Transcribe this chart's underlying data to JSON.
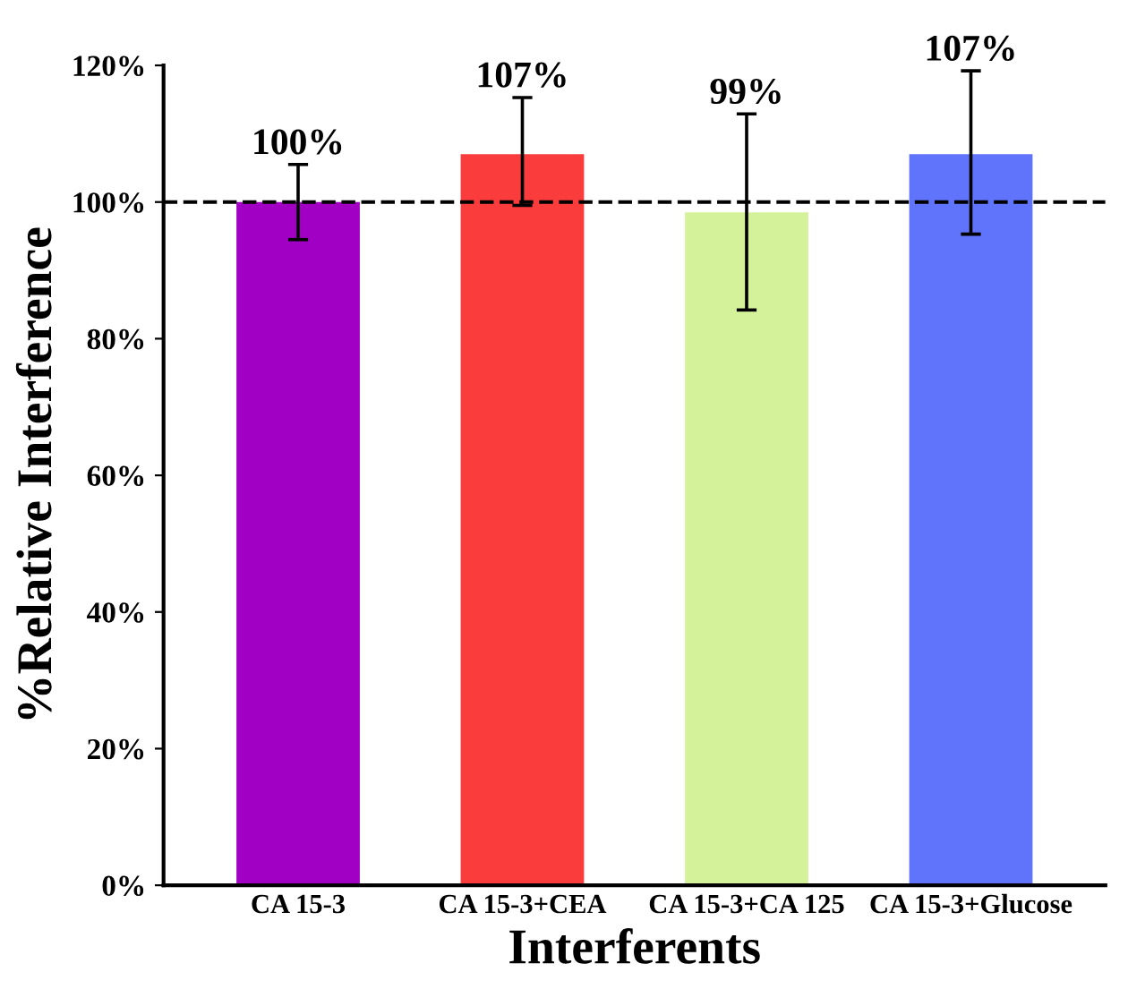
{
  "chart_data": {
    "type": "bar",
    "xlabel": "Interferents",
    "ylabel": "%Relative Interference",
    "categories": [
      "CA 15-3",
      "CA 15-3+CEA",
      "CA 15-3+CA 125",
      "CA 15-3+Glucose"
    ],
    "values": [
      100,
      107,
      98.5,
      107
    ],
    "colors": [
      "#a100c4",
      "#fa3c3c",
      "#d4f29a",
      "#5f73fb"
    ],
    "value_labels": [
      "100%",
      "107%",
      "99%",
      "107%"
    ],
    "errors": [
      [
        94.5,
        105.5
      ],
      [
        99.5,
        115.3
      ],
      [
        84.2,
        112.9
      ],
      [
        95.3,
        119.2
      ]
    ],
    "ylim": [
      0,
      120
    ],
    "yticks": [
      {
        "value": 0,
        "label": "0%"
      },
      {
        "value": 20,
        "label": "20%"
      },
      {
        "value": 40,
        "label": "40%"
      },
      {
        "value": 60,
        "label": "60%"
      },
      {
        "value": 80,
        "label": "80%"
      },
      {
        "value": 100,
        "label": "100%"
      },
      {
        "value": 120,
        "label": "120%"
      }
    ],
    "ref_lines": [
      {
        "axis": "y",
        "value": 100,
        "line_style": "dashed",
        "color": "#000000"
      }
    ],
    "grid": false,
    "legend": false
  }
}
